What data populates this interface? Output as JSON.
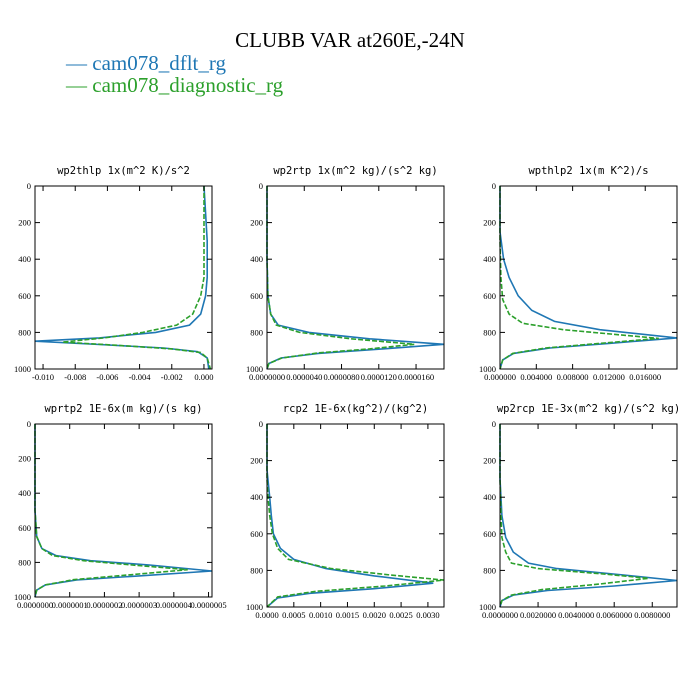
{
  "title": "CLUBB VAR at260E,-24N",
  "legend": [
    {
      "label": "cam078_dflt_rg",
      "color": "#1f77b4"
    },
    {
      "label": "cam078_diagnostic_rg",
      "color": "#2ca02c"
    }
  ],
  "chart_data": [
    {
      "type": "line",
      "title": "wp2thlp  1x(m^2 K)/s^2",
      "ylim": [
        1000,
        0
      ],
      "yticks": [
        "0",
        "200",
        "400",
        "600",
        "800",
        "1000"
      ],
      "xlim": [
        -0.0105,
        0.0005
      ],
      "xticks": [
        -0.01,
        -0.008,
        -0.006,
        -0.004,
        -0.002,
        0.0
      ],
      "xtick_labels": [
        "-0.010",
        "-0.008",
        "-0.006",
        "-0.004",
        "-0.002",
        "0.000"
      ],
      "series": [
        {
          "name": "cam078_dflt_rg",
          "points": [
            [
              0.0,
              0
            ],
            [
              0.0001,
              150
            ],
            [
              0.0002,
              300
            ],
            [
              0.0002,
              500
            ],
            [
              0.0001,
              600
            ],
            [
              -0.0002,
              700
            ],
            [
              -0.0009,
              760
            ],
            [
              -0.003,
              800
            ],
            [
              -0.0065,
              830
            ],
            [
              -0.0105,
              848
            ],
            [
              -0.0065,
              866
            ],
            [
              -0.0025,
              885
            ],
            [
              -0.0004,
              905
            ],
            [
              0.0002,
              940
            ],
            [
              0.0003,
              1000
            ]
          ]
        },
        {
          "name": "cam078_diagnostic_rg",
          "points": [
            [
              0.0,
              0
            ],
            [
              0.0,
              150
            ],
            [
              0.0,
              300
            ],
            [
              0.0,
              500
            ],
            [
              -0.0002,
              600
            ],
            [
              -0.0007,
              700
            ],
            [
              -0.0017,
              760
            ],
            [
              -0.0038,
              800
            ],
            [
              -0.0062,
              830
            ],
            [
              -0.0088,
              853
            ],
            [
              -0.0055,
              870
            ],
            [
              -0.002,
              890
            ],
            [
              -0.0002,
              910
            ],
            [
              0.0002,
              940
            ],
            [
              0.0004,
              1000
            ]
          ]
        }
      ]
    },
    {
      "type": "line",
      "title": "wp2rtp  1x(m^2 kg)/(s^2 kg)",
      "ylim": [
        1000,
        0
      ],
      "yticks": [
        "0",
        "200",
        "400",
        "600",
        "800",
        "1000"
      ],
      "xlim": [
        0,
        1.9e-05
      ],
      "xticks": [
        0,
        4e-06,
        8e-06,
        1.2e-05,
        1.6e-05
      ],
      "xtick_labels": [
        "0.0000000",
        "0.0000040",
        "0.0000080",
        "0.0000120",
        "0.0000160"
      ],
      "series": [
        {
          "name": "cam078_dflt_rg",
          "points": [
            [
              0,
              0
            ],
            [
              0,
              400
            ],
            [
              1e-07,
              600
            ],
            [
              4e-07,
              700
            ],
            [
              1.2e-06,
              760
            ],
            [
              4.5e-06,
              800
            ],
            [
              1.1e-05,
              835
            ],
            [
              1.9e-05,
              865
            ],
            [
              1.2e-05,
              892
            ],
            [
              5.5e-06,
              915
            ],
            [
              1.5e-06,
              940
            ],
            [
              2e-07,
              970
            ],
            [
              0,
              1000
            ]
          ]
        },
        {
          "name": "cam078_diagnostic_rg",
          "points": [
            [
              0,
              0
            ],
            [
              0,
              400
            ],
            [
              1e-07,
              600
            ],
            [
              4e-07,
              700
            ],
            [
              1e-06,
              760
            ],
            [
              3.5e-06,
              800
            ],
            [
              9e-06,
              835
            ],
            [
              1.58e-05,
              865
            ],
            [
              1.1e-05,
              890
            ],
            [
              5.5e-06,
              912
            ],
            [
              1.6e-06,
              940
            ],
            [
              2e-07,
              970
            ],
            [
              0,
              1000
            ]
          ]
        }
      ]
    },
    {
      "type": "line",
      "title": "wpthlp2  1x(m K^2)/s",
      "ylim": [
        1000,
        0
      ],
      "yticks": [
        "0",
        "200",
        "400",
        "600",
        "800",
        "1000"
      ],
      "xlim": [
        0,
        0.0195
      ],
      "xticks": [
        0,
        0.004,
        0.008,
        0.012,
        0.016
      ],
      "xtick_labels": [
        "0.000000",
        "0.004000",
        "0.008000",
        "0.012000",
        "0.016000"
      ],
      "series": [
        {
          "name": "cam078_dflt_rg",
          "points": [
            [
              0,
              0
            ],
            [
              0,
              250
            ],
            [
              0.0004,
              400
            ],
            [
              0.001,
              500
            ],
            [
              0.002,
              600
            ],
            [
              0.0035,
              680
            ],
            [
              0.006,
              740
            ],
            [
              0.011,
              785
            ],
            [
              0.0195,
              830
            ],
            [
              0.012,
              860
            ],
            [
              0.0055,
              885
            ],
            [
              0.0015,
              915
            ],
            [
              0.0003,
              950
            ],
            [
              0,
              1000
            ]
          ]
        },
        {
          "name": "cam078_diagnostic_rg",
          "points": [
            [
              0,
              0
            ],
            [
              0,
              300
            ],
            [
              0.0001,
              500
            ],
            [
              0.0003,
              620
            ],
            [
              0.001,
              700
            ],
            [
              0.0025,
              750
            ],
            [
              0.007,
              785
            ],
            [
              0.0175,
              833
            ],
            [
              0.011,
              860
            ],
            [
              0.005,
              885
            ],
            [
              0.0014,
              915
            ],
            [
              0.0003,
              950
            ],
            [
              0,
              1000
            ]
          ]
        }
      ]
    },
    {
      "type": "line",
      "title": "wprtp2  1E-6x(m kg)/(s kg)",
      "ylim": [
        1000,
        0
      ],
      "yticks": [
        "0",
        "200",
        "400",
        "600",
        "800",
        "1000"
      ],
      "xlim": [
        0,
        5.1e-07
      ],
      "xticks": [
        0,
        1e-07,
        2e-07,
        3e-07,
        4e-07,
        5e-07
      ],
      "xtick_labels": [
        "0.0000000",
        "0.0000001",
        "0.0000002",
        "0.0000003",
        "0.0000004",
        "0.0000005"
      ],
      "series": [
        {
          "name": "cam078_dflt_rg",
          "points": [
            [
              0,
              0
            ],
            [
              0,
              500
            ],
            [
              5e-09,
              650
            ],
            [
              2e-08,
              720
            ],
            [
              6e-08,
              760
            ],
            [
              1.6e-07,
              790
            ],
            [
              3.3e-07,
              815
            ],
            [
              5.1e-07,
              850
            ],
            [
              3e-07,
              878
            ],
            [
              1.2e-07,
              902
            ],
            [
              3e-08,
              930
            ],
            [
              5e-09,
              960
            ],
            [
              0,
              1000
            ]
          ]
        },
        {
          "name": "cam078_diagnostic_rg",
          "points": [
            [
              0,
              0
            ],
            [
              0,
              500
            ],
            [
              5e-09,
              650
            ],
            [
              2e-08,
              720
            ],
            [
              5e-08,
              760
            ],
            [
              1.4e-07,
              790
            ],
            [
              2.8e-07,
              815
            ],
            [
              4.4e-07,
              842
            ],
            [
              2.7e-07,
              872
            ],
            [
              1.1e-07,
              900
            ],
            [
              3e-08,
              930
            ],
            [
              5e-09,
              960
            ],
            [
              0,
              1000
            ]
          ]
        }
      ]
    },
    {
      "type": "line",
      "title": "rcp2  1E-6x(kg^2)/(kg^2)",
      "ylim": [
        1000,
        0
      ],
      "yticks": [
        "0",
        "200",
        "400",
        "600",
        "800",
        "1000"
      ],
      "xlim": [
        0,
        0.0033
      ],
      "xticks": [
        0,
        0.0005,
        0.001,
        0.0015,
        0.002,
        0.0025,
        0.003
      ],
      "xtick_labels": [
        "0.0000",
        "0.0005",
        "0.0010",
        "0.0015",
        "0.0020",
        "0.0025",
        "0.0030"
      ],
      "series": [
        {
          "name": "cam078_dflt_rg",
          "points": [
            [
              0,
              0
            ],
            [
              0,
              250
            ],
            [
              5e-05,
              400
            ],
            [
              8e-05,
              500
            ],
            [
              0.00012,
              600
            ],
            [
              0.00025,
              680
            ],
            [
              0.0005,
              740
            ],
            [
              0.0011,
              790
            ],
            [
              0.002,
              830
            ],
            [
              0.0031,
              870
            ],
            [
              0.002,
              900
            ],
            [
              0.0008,
              925
            ],
            [
              0.0002,
              950
            ],
            [
              0,
              1000
            ]
          ]
        },
        {
          "name": "cam078_diagnostic_rg",
          "points": [
            [
              0,
              0
            ],
            [
              0,
              300
            ],
            [
              2e-05,
              400
            ],
            [
              5e-05,
              500
            ],
            [
              0.0001,
              600
            ],
            [
              0.0002,
              680
            ],
            [
              0.0004,
              740
            ],
            [
              0.0012,
              790
            ],
            [
              0.0023,
              825
            ],
            [
              0.0033,
              853
            ],
            [
              0.0022,
              885
            ],
            [
              0.0009,
              915
            ],
            [
              0.0002,
              945
            ],
            [
              0,
              1000
            ]
          ]
        }
      ]
    },
    {
      "type": "line",
      "title": "wp2rcp  1E-3x(m^2 kg)/(s^2 kg)",
      "ylim": [
        1000,
        0
      ],
      "yticks": [
        "0",
        "200",
        "400",
        "600",
        "800",
        "1000"
      ],
      "xlim": [
        0,
        0.0093
      ],
      "xticks": [
        0,
        0.002,
        0.004,
        0.006,
        0.008
      ],
      "xtick_labels": [
        "0.0000000",
        "0.0020000",
        "0.0040000",
        "0.0060000",
        "0.0080000"
      ],
      "series": [
        {
          "name": "cam078_dflt_rg",
          "points": [
            [
              0,
              0
            ],
            [
              0,
              300
            ],
            [
              0.0001,
              500
            ],
            [
              0.0003,
              620
            ],
            [
              0.0007,
              700
            ],
            [
              0.0015,
              760
            ],
            [
              0.003,
              790
            ],
            [
              0.0065,
              825
            ],
            [
              0.0093,
              855
            ],
            [
              0.006,
              885
            ],
            [
              0.0025,
              910
            ],
            [
              0.0007,
              935
            ],
            [
              0.0001,
              965
            ],
            [
              0,
              1000
            ]
          ]
        },
        {
          "name": "cam078_diagnostic_rg",
          "points": [
            [
              0,
              0
            ],
            [
              0,
              300
            ],
            [
              5e-05,
              500
            ],
            [
              0.0001,
              620
            ],
            [
              0.0003,
              700
            ],
            [
              0.0006,
              760
            ],
            [
              0.002,
              790
            ],
            [
              0.0055,
              820
            ],
            [
              0.0078,
              843
            ],
            [
              0.0052,
              875
            ],
            [
              0.0022,
              905
            ],
            [
              0.0006,
              935
            ],
            [
              0.0001,
              965
            ],
            [
              0,
              1000
            ]
          ]
        }
      ]
    }
  ]
}
